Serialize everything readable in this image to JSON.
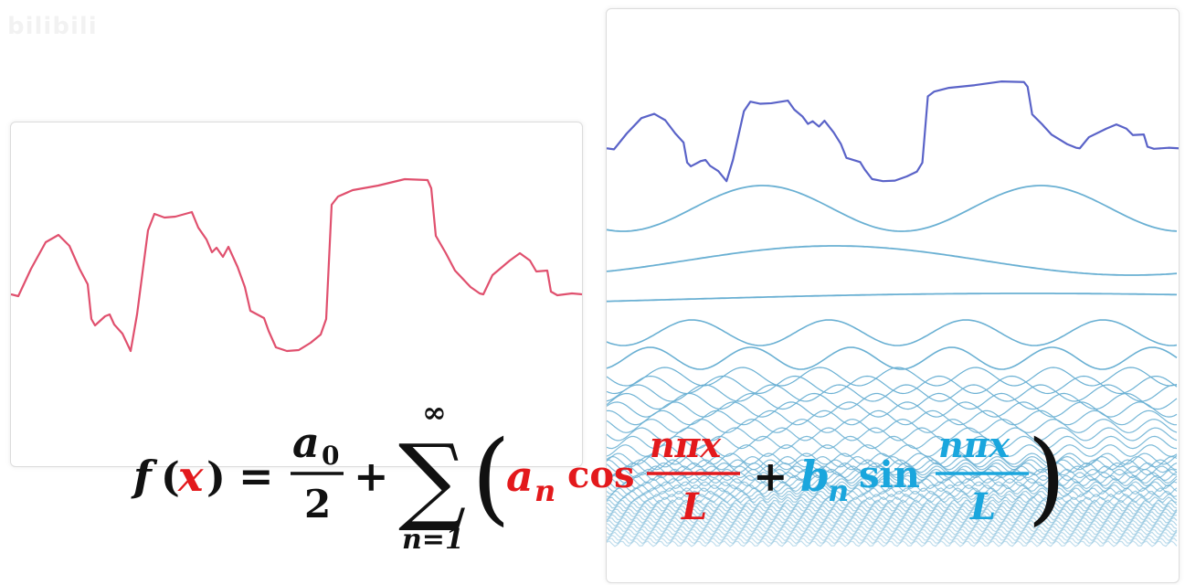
{
  "watermark": {
    "text": "bilibili",
    "logo": "bilibili-logo"
  },
  "formula": {
    "lhs_f": "f",
    "lhs_open": "(",
    "lhs_x": "x",
    "lhs_close": ")",
    "equals": "=",
    "a0_a": "a",
    "a0_sub": "0",
    "half_den": "2",
    "plus1": "+",
    "sum_sign": "∑",
    "sum_upper": "∞",
    "sum_lower": "n=1",
    "paren_open": "(",
    "an_a": "a",
    "an_sub": "n",
    "cos": "cos",
    "frac1_num": "nπx",
    "frac1_den": "L",
    "plus2": "+",
    "bn_b": "b",
    "bn_sub": "n",
    "sin": "sin",
    "frac2_num": "nπx",
    "frac2_den": "L",
    "paren_close": ")"
  },
  "colors": {
    "signal_left": "#e0506e",
    "signal_right": "#5a63c8",
    "harmonics": "#6ab0d3",
    "cos_term": "#e3191c",
    "sin_term": "#1aa6dd",
    "text_dark": "#111111"
  }
}
